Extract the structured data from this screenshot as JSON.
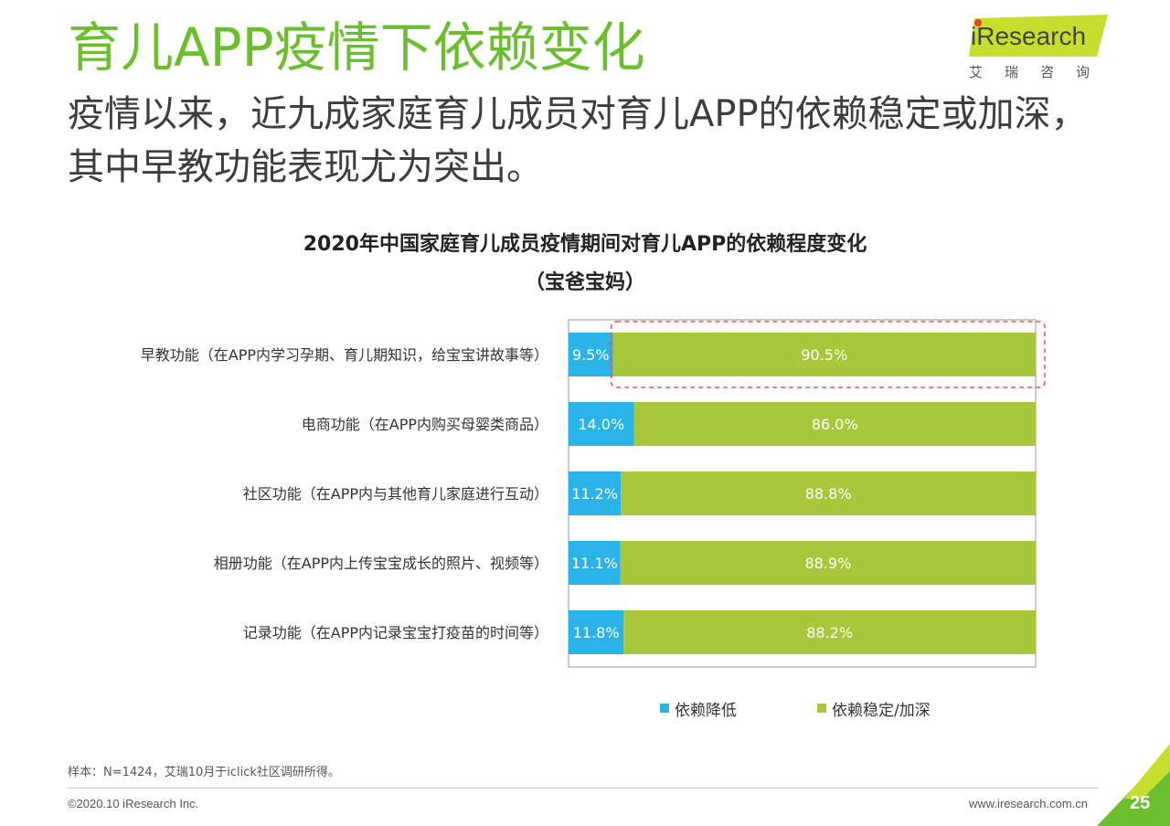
{
  "slide": {
    "title": "育儿APP疫情下依赖变化",
    "subtitle": "疫情以来，近九成家庭育儿成员对育儿APP的依赖稳定或加深，其中早教功能表现尤为突出。",
    "logo_text": "iResearch",
    "logo_cn": "艾瑞咨询",
    "note": "样本：N=1424，艾瑞10月于iclick社区调研所得。",
    "copyright": "©2020.10 iResearch Inc.",
    "site": "www.iresearch.com.cn",
    "page_number": "25"
  },
  "colors": {
    "title_green": "#6bbf2e",
    "decrease": "#2ab3e6",
    "stable": "#a7c83a",
    "highlight": "#e05a5a"
  },
  "chart_data": {
    "type": "bar",
    "orientation": "horizontal",
    "stacked": true,
    "percent": true,
    "title": "2020年中国家庭育儿成员疫情期间对育儿APP的依赖程度变化",
    "subtitle": "（宝爸宝妈）",
    "categories": [
      "早教功能（在APP内学习孕期、育儿期知识，给宝宝讲故事等）",
      "电商功能（在APP内购买母婴类商品）",
      "社区功能（在APP内与其他育儿家庭进行互动）",
      "相册功能（在APP内上传宝宝成长的照片、视频等）",
      "记录功能（在APP内记录宝宝打疫苗的时间等）"
    ],
    "series": [
      {
        "name": "依赖降低",
        "values": [
          9.5,
          14.0,
          11.2,
          11.1,
          11.8
        ],
        "labels": [
          "9.5%",
          "14.0%",
          "11.2%",
          "11.1%",
          "11.8%"
        ]
      },
      {
        "name": "依赖稳定/加深",
        "values": [
          90.5,
          86.0,
          88.8,
          88.9,
          88.2
        ],
        "labels": [
          "90.5%",
          "86.0%",
          "88.8%",
          "88.9%",
          "88.2%"
        ]
      }
    ],
    "xlim": [
      0,
      100
    ],
    "highlighted_category": 0,
    "legend_position": "bottom"
  }
}
